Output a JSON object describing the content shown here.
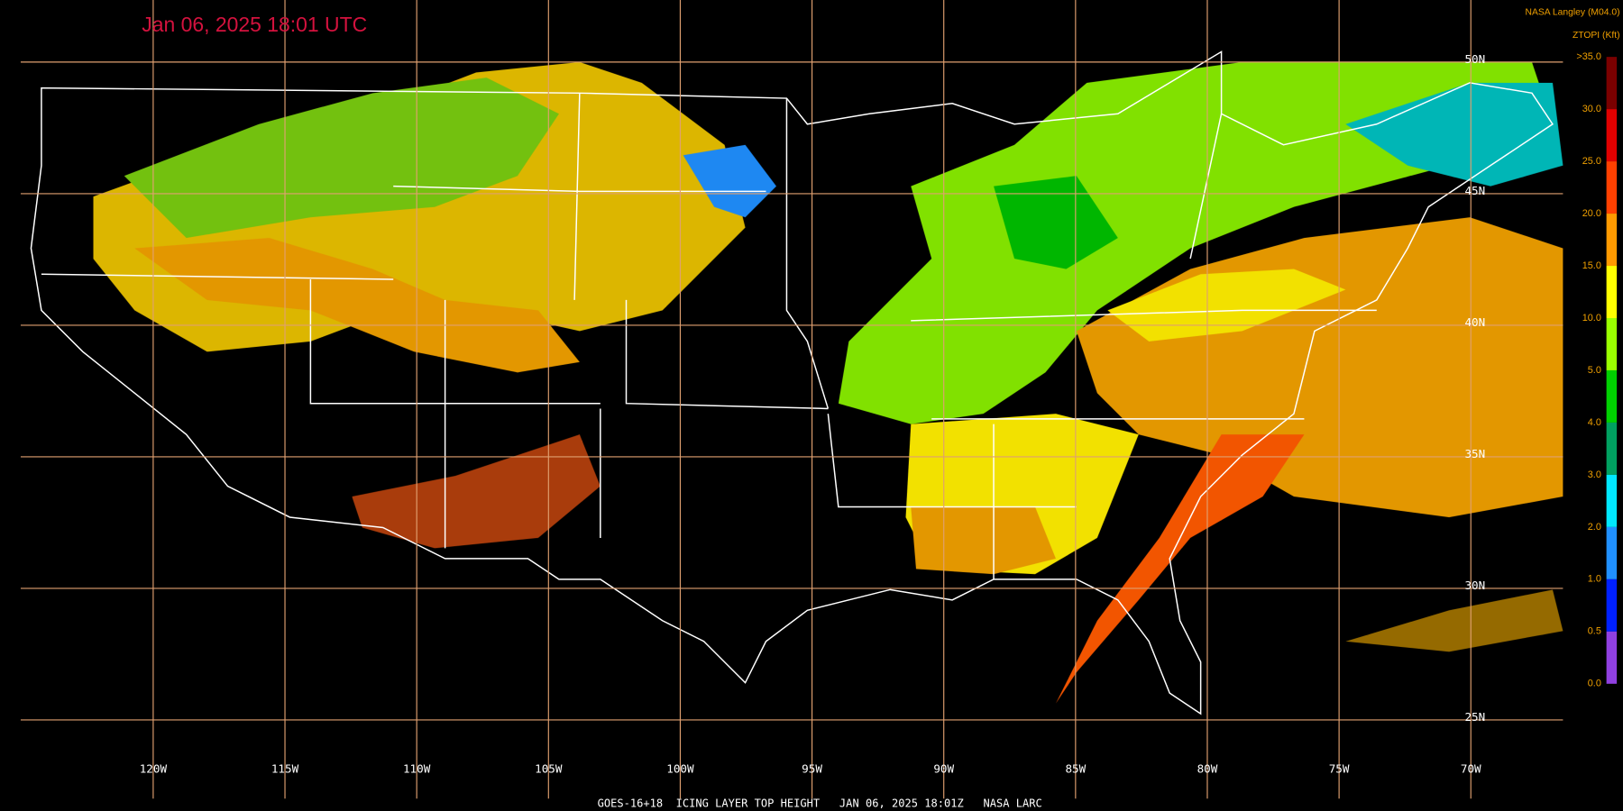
{
  "header": {
    "title": "Jan 06, 2025 18:01 UTC",
    "source": "NASA Langley (M04.0)",
    "footer": "GOES-16+18  ICING LAYER TOP HEIGHT   JAN 06, 2025 18:01Z   NASA LARC"
  },
  "colorbar": {
    "title": "ZTOPI (Kft)",
    "labels": [
      ">35.0",
      "30.0",
      "25.0",
      "20.0",
      "15.0",
      "10.0",
      "5.0",
      "4.0",
      "3.0",
      "2.0",
      "1.0",
      "0.5",
      "0.0"
    ],
    "colors": [
      "#7a0000",
      "#e00000",
      "#ff4000",
      "#ff9a00",
      "#ffff00",
      "#9aff00",
      "#00d000",
      "#00a060",
      "#00e8ff",
      "#2090ff",
      "#0020ff",
      "#9040e0"
    ]
  },
  "longitudes": [
    "120W",
    "115W",
    "110W",
    "105W",
    "100W",
    "95W",
    "90W",
    "85W",
    "80W",
    "75W",
    "70W"
  ],
  "latitudes": [
    "50N",
    "45N",
    "40N",
    "35N",
    "30N",
    "25N"
  ]
}
